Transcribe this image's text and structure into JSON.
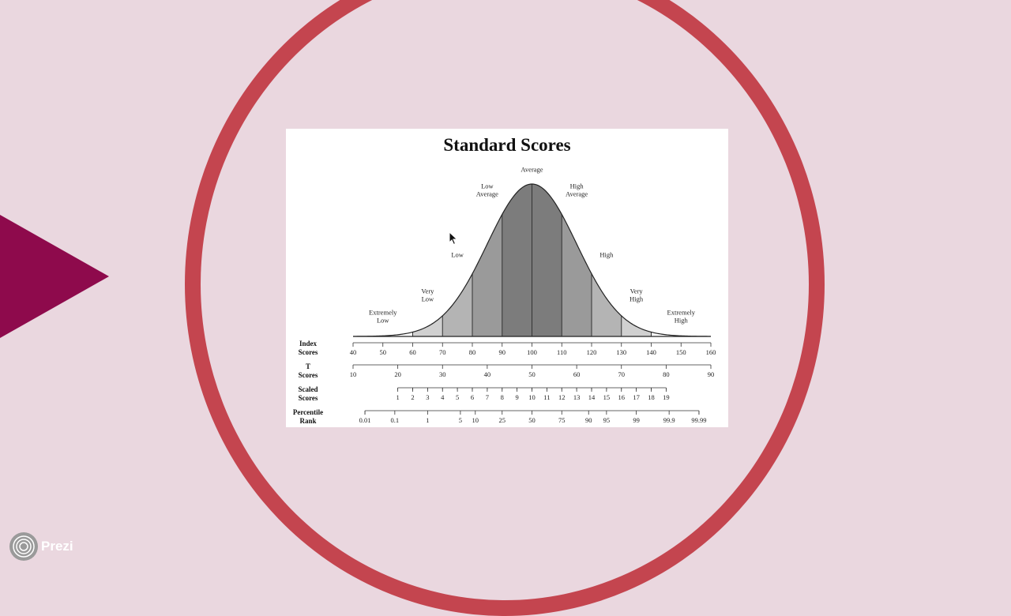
{
  "slide": {
    "colors": {
      "background": "#ead7df",
      "ring": "#c4454f",
      "arrow": "#8e0a4c"
    }
  },
  "chart_data": {
    "type": "area",
    "title": "Standard Scores",
    "xlim": [
      40,
      160
    ],
    "mean": 100,
    "sd": 15,
    "bands": [
      {
        "label": "Extremely Low",
        "from": 40,
        "to": 60,
        "shade": "#ffffff"
      },
      {
        "label": "Very Low",
        "from": 60,
        "to": 70,
        "shade": "#d0d0d0"
      },
      {
        "label": "Low",
        "from": 70,
        "to": 80,
        "shade": "#b4b4b4"
      },
      {
        "label": "Low Average",
        "from": 80,
        "to": 90,
        "shade": "#9a9a9a"
      },
      {
        "label": "Average",
        "from": 90,
        "to": 110,
        "shade": "#7c7c7c"
      },
      {
        "label": "High Average",
        "from": 110,
        "to": 120,
        "shade": "#9a9a9a"
      },
      {
        "label": "High",
        "from": 120,
        "to": 130,
        "shade": "#b4b4b4"
      },
      {
        "label": "Very High",
        "from": 130,
        "to": 140,
        "shade": "#d0d0d0"
      },
      {
        "label": "Extremely High",
        "from": 140,
        "to": 160,
        "shade": "#ffffff"
      }
    ],
    "band_labels": [
      {
        "lines": [
          "Extremely",
          "Low"
        ],
        "x": 50,
        "density": 0.09
      },
      {
        "lines": [
          "Very",
          "Low"
        ],
        "x": 65,
        "density": 0.23
      },
      {
        "lines": [
          "Low"
        ],
        "x": 75,
        "density": 0.52
      },
      {
        "lines": [
          "Low",
          "Average"
        ],
        "x": 85,
        "density": 0.92
      },
      {
        "lines": [
          "Average"
        ],
        "x": 100,
        "density": 1.08
      },
      {
        "lines": [
          "High",
          "Average"
        ],
        "x": 115,
        "density": 0.92
      },
      {
        "lines": [
          "High"
        ],
        "x": 125,
        "density": 0.52
      },
      {
        "lines": [
          "Very",
          "High"
        ],
        "x": 135,
        "density": 0.23
      },
      {
        "lines": [
          "Extremely",
          "High"
        ],
        "x": 150,
        "density": 0.09
      }
    ],
    "scales": [
      {
        "label_lines": [
          "Index",
          "Scores"
        ],
        "major": [
          40,
          50,
          60,
          70,
          80,
          90,
          100,
          110,
          120,
          130,
          140,
          150,
          160
        ],
        "ticks": [
          {
            "x": 40,
            "label": "40"
          },
          {
            "x": 50,
            "label": "50"
          },
          {
            "x": 60,
            "label": "60"
          },
          {
            "x": 70,
            "label": "70"
          },
          {
            "x": 80,
            "label": "80"
          },
          {
            "x": 90,
            "label": "90"
          },
          {
            "x": 100,
            "label": "100"
          },
          {
            "x": 110,
            "label": "110"
          },
          {
            "x": 120,
            "label": "120"
          },
          {
            "x": 130,
            "label": "130"
          },
          {
            "x": 140,
            "label": "140"
          },
          {
            "x": 150,
            "label": "150"
          },
          {
            "x": 160,
            "label": "160"
          }
        ],
        "range": [
          40,
          160
        ]
      },
      {
        "label_lines": [
          "T",
          "Scores"
        ],
        "ticks": [
          {
            "x": 40,
            "label": "10"
          },
          {
            "x": 55,
            "label": "20"
          },
          {
            "x": 70,
            "label": "30"
          },
          {
            "x": 85,
            "label": "40"
          },
          {
            "x": 100,
            "label": "50"
          },
          {
            "x": 115,
            "label": "60"
          },
          {
            "x": 130,
            "label": "70"
          },
          {
            "x": 145,
            "label": "80"
          },
          {
            "x": 160,
            "label": "90"
          }
        ],
        "range": [
          40,
          160
        ]
      },
      {
        "label_lines": [
          "Scaled",
          "Scores"
        ],
        "ticks": [
          {
            "x": 55,
            "label": "1"
          },
          {
            "x": 60,
            "label": "2"
          },
          {
            "x": 65,
            "label": "3"
          },
          {
            "x": 70,
            "label": "4"
          },
          {
            "x": 75,
            "label": "5"
          },
          {
            "x": 80,
            "label": "6"
          },
          {
            "x": 85,
            "label": "7"
          },
          {
            "x": 90,
            "label": "8"
          },
          {
            "x": 95,
            "label": "9"
          },
          {
            "x": 100,
            "label": "10"
          },
          {
            "x": 105,
            "label": "11"
          },
          {
            "x": 110,
            "label": "12"
          },
          {
            "x": 115,
            "label": "13"
          },
          {
            "x": 120,
            "label": "14"
          },
          {
            "x": 125,
            "label": "15"
          },
          {
            "x": 130,
            "label": "16"
          },
          {
            "x": 135,
            "label": "17"
          },
          {
            "x": 140,
            "label": "18"
          },
          {
            "x": 145,
            "label": "19"
          }
        ],
        "range": [
          55,
          145
        ]
      },
      {
        "label_lines": [
          "Percentile",
          "Rank"
        ],
        "ticks": [
          {
            "x": 44,
            "label": "0.01"
          },
          {
            "x": 54,
            "label": "0.1"
          },
          {
            "x": 65,
            "label": "1"
          },
          {
            "x": 76,
            "label": "5"
          },
          {
            "x": 81,
            "label": "10"
          },
          {
            "x": 90,
            "label": "25"
          },
          {
            "x": 100,
            "label": "50"
          },
          {
            "x": 110,
            "label": "75"
          },
          {
            "x": 119,
            "label": "90"
          },
          {
            "x": 125,
            "label": "95"
          },
          {
            "x": 135,
            "label": "99"
          },
          {
            "x": 146,
            "label": "99.9"
          },
          {
            "x": 156,
            "label": "99.99"
          }
        ],
        "range": [
          44,
          156
        ]
      }
    ]
  },
  "branding": {
    "name": "Prezi",
    "icon": "prezi-logo-icon"
  }
}
